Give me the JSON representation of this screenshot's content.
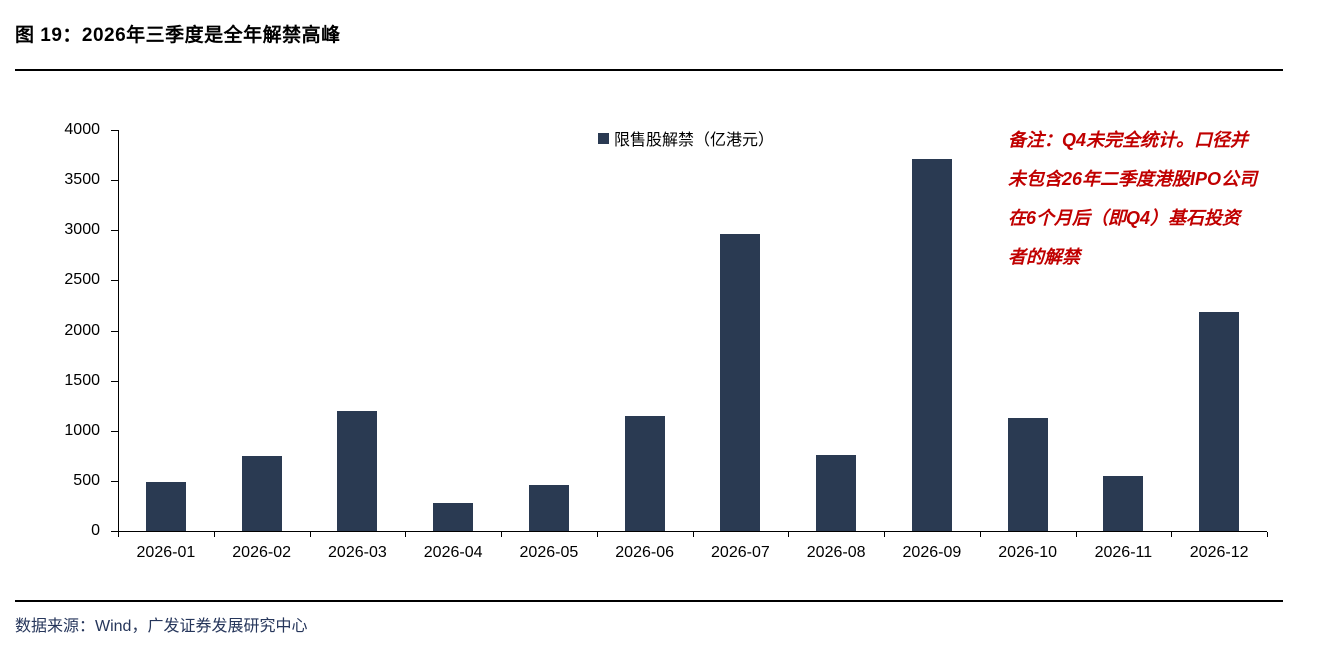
{
  "figure": {
    "title": "图 19：2026年三季度是全年解禁高峰"
  },
  "legend": {
    "label": "限售股解禁（亿港元）",
    "swatch_icon": "square-swatch-icon"
  },
  "note": {
    "lines": [
      "备注：Q4未完全统计。口径并",
      "未包含26年二季度港股IPO公司",
      "在6个月后（即Q4）基石投资",
      "者的解禁"
    ]
  },
  "footer": {
    "source": "数据来源：Wind，广发证券发展研究中心"
  },
  "colors": {
    "bar": "#2a3a52",
    "note": "#c00000",
    "footer": "#26365b",
    "axis": "#000000"
  },
  "chart_data": {
    "type": "bar",
    "title": "",
    "legend": "限售股解禁（亿港元）",
    "categories": [
      "2026-01",
      "2026-02",
      "2026-03",
      "2026-04",
      "2026-05",
      "2026-06",
      "2026-07",
      "2026-08",
      "2026-09",
      "2026-10",
      "2026-11",
      "2026-12"
    ],
    "values": [
      490,
      750,
      1200,
      280,
      460,
      1150,
      2960,
      760,
      3710,
      1130,
      550,
      2180
    ],
    "xlabel": "",
    "ylabel": "",
    "ylim": [
      0,
      4000
    ],
    "ytick_step": 500,
    "yticks": [
      0,
      500,
      1000,
      1500,
      2000,
      2500,
      3000,
      3500,
      4000
    ],
    "grid": false,
    "legend_position": "top-center",
    "bar_color": "#2a3a52"
  }
}
